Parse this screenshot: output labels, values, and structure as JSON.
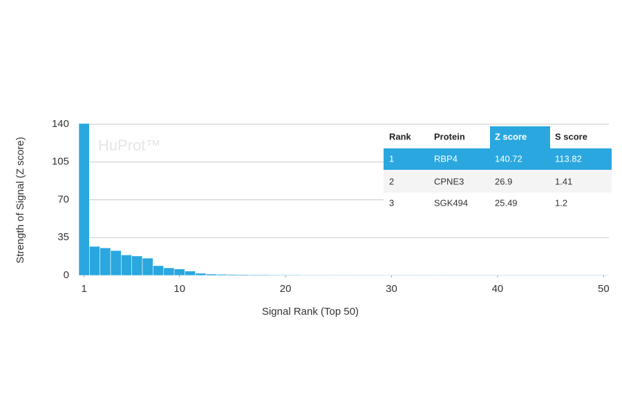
{
  "chart_data": {
    "type": "bar",
    "watermark": "HuProt™",
    "xlabel": "Signal Rank (Top 50)",
    "ylabel": "Strength of Signal (Z score)",
    "x": [
      1,
      2,
      3,
      4,
      5,
      6,
      7,
      8,
      9,
      10,
      11,
      12,
      13,
      14,
      15,
      16,
      17,
      18,
      19,
      20,
      21,
      22,
      23,
      24,
      25,
      26,
      27,
      28,
      29,
      30,
      31,
      32,
      33,
      34,
      35,
      36,
      37,
      38,
      39,
      40,
      41,
      42,
      43,
      44,
      45,
      46,
      47,
      48,
      49,
      50
    ],
    "values": [
      140.72,
      26.9,
      25.49,
      23,
      19,
      18,
      16,
      9,
      7,
      6,
      4,
      2,
      1.3,
      1,
      0.9,
      0.8,
      0.7,
      0.7,
      0.6,
      0.6,
      0.6,
      0.5,
      0.5,
      0.5,
      0.5,
      0.5,
      0.5,
      0.5,
      0.5,
      0.5,
      0.5,
      0.5,
      0.5,
      0.5,
      0.5,
      0.5,
      0.5,
      0.5,
      0.5,
      0.5,
      0.5,
      0.5,
      0.5,
      0.5,
      0.5,
      0.5,
      0.5,
      0.5,
      0.5,
      0.5
    ],
    "color": "#2aa7df",
    "xlim": [
      0.5,
      50.5
    ],
    "xticks": [
      1,
      10,
      20,
      30,
      40,
      50
    ],
    "ylim": [
      0,
      140
    ],
    "yticks": [
      0,
      35,
      70,
      105,
      140
    ],
    "grid": true,
    "table": {
      "columns": [
        "Rank",
        "Protein",
        "Z score",
        "S score"
      ],
      "rows": [
        [
          1,
          "RBP4",
          140.72,
          113.82
        ],
        [
          2,
          "CPNE3",
          26.9,
          1.41
        ],
        [
          3,
          "SGK494",
          25.49,
          1.2
        ]
      ]
    }
  }
}
